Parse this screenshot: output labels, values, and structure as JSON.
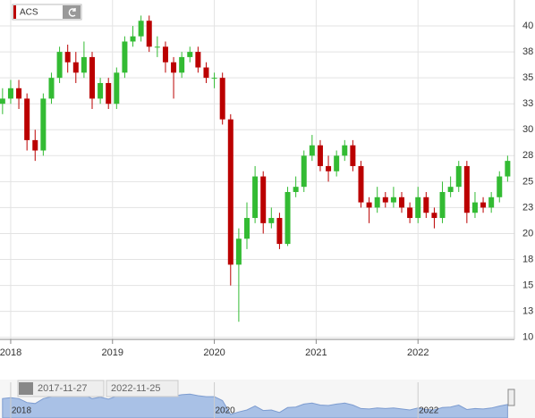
{
  "chart_data": {
    "type": "candlestick",
    "title": "ACS",
    "x": [
      2017.92,
      2018.0,
      2018.08,
      2018.16,
      2018.24,
      2018.32,
      2018.4,
      2018.48,
      2018.56,
      2018.64,
      2018.72,
      2018.8,
      2018.88,
      2018.96,
      2019.04,
      2019.12,
      2019.2,
      2019.28,
      2019.36,
      2019.44,
      2019.52,
      2019.6,
      2019.68,
      2019.76,
      2019.84,
      2019.92,
      2020.0,
      2020.08,
      2020.16,
      2020.24,
      2020.32,
      2020.4,
      2020.48,
      2020.56,
      2020.64,
      2020.72,
      2020.8,
      2020.88,
      2020.96,
      2021.04,
      2021.12,
      2021.2,
      2021.28,
      2021.36,
      2021.44,
      2021.52,
      2021.6,
      2021.68,
      2021.76,
      2021.84,
      2021.92,
      2022.0,
      2022.08,
      2022.16,
      2022.24,
      2022.32,
      2022.4,
      2022.48,
      2022.56,
      2022.64,
      2022.72,
      2022.8,
      2022.88
    ],
    "open": [
      32.5,
      33,
      34,
      33,
      29,
      28,
      33,
      35,
      37.5,
      36.5,
      35.5,
      37,
      33,
      34.5,
      32.5,
      35.5,
      38.5,
      39,
      40.5,
      38,
      38,
      36.5,
      35.5,
      37,
      37.5,
      36,
      35,
      35,
      31,
      17,
      19.5,
      21.5,
      25.5,
      21,
      21.5,
      19,
      24,
      24.5,
      27.5,
      28.5,
      26.5,
      26,
      27.5,
      28.5,
      26.5,
      23,
      22.5,
      23.5,
      23,
      23.5,
      22.5,
      21.5,
      23.5,
      22,
      21.5,
      24,
      24.5,
      26.5,
      22,
      23,
      22.5,
      23.5,
      25.5
    ],
    "high": [
      34,
      34.8,
      34.8,
      33.5,
      30,
      33.5,
      35.5,
      38,
      38.2,
      37.5,
      38.5,
      37.5,
      35,
      35,
      36,
      39,
      40,
      41,
      41,
      39,
      38.5,
      37,
      37.5,
      38,
      38,
      36.5,
      35.5,
      35.5,
      31.5,
      20.5,
      23,
      26.5,
      26,
      22.5,
      22,
      24.5,
      25.5,
      28,
      29.5,
      29,
      27.5,
      28,
      29,
      29,
      27,
      23.5,
      24.5,
      24,
      24.5,
      24,
      23,
      24.5,
      24,
      22.5,
      25,
      25.5,
      27,
      27,
      24,
      23.5,
      24,
      26,
      27.5
    ],
    "low": [
      31.5,
      32.5,
      32,
      28,
      27,
      27.5,
      32.5,
      34.5,
      35.5,
      34.5,
      35,
      32,
      32.5,
      32,
      32,
      35,
      38,
      38.5,
      37.5,
      37,
      35.5,
      33,
      35,
      36.5,
      35.5,
      34.5,
      34,
      30.5,
      15,
      11.5,
      18.5,
      21,
      20,
      20.5,
      18.5,
      18.8,
      23.5,
      24,
      27,
      26,
      25,
      25.5,
      27,
      26,
      22.5,
      21,
      22,
      22.5,
      22.5,
      22,
      21,
      21,
      21.5,
      20.5,
      21,
      23.5,
      24,
      21,
      21.5,
      22,
      22,
      23,
      25
    ],
    "close": [
      33,
      34,
      33,
      29,
      28,
      33,
      35,
      37.5,
      36.5,
      35.5,
      37,
      33,
      34.5,
      32.5,
      35.5,
      38.5,
      39,
      40.5,
      38,
      38,
      36.5,
      35.5,
      37,
      37.5,
      36,
      35,
      35,
      31,
      17,
      19.5,
      21.5,
      25.5,
      21,
      21.5,
      19,
      24,
      24.5,
      27.5,
      28.5,
      26.5,
      26,
      27.5,
      28.5,
      26.5,
      23,
      22.5,
      23.5,
      23,
      23.5,
      22.5,
      21.5,
      23.5,
      22,
      21.5,
      24,
      24.5,
      26.5,
      22,
      23,
      22.5,
      23.5,
      25.5,
      27
    ],
    "up_color": "#33bb33",
    "down_color": "#bb0000",
    "xlim": [
      2017.895,
      2022.947
    ],
    "xticks": [
      2018,
      2019,
      2020,
      2021,
      2022
    ],
    "ylim": [
      9.8,
      42.5
    ],
    "yticks": [
      10,
      {
        "value": 12.5,
        "label": "13"
      },
      15,
      {
        "value": 17.5,
        "label": "18"
      },
      20,
      {
        "value": 22.5,
        "label": "23"
      },
      25,
      {
        "value": 27.5,
        "label": "28"
      },
      30,
      {
        "value": 32.5,
        "label": "33"
      },
      35,
      {
        "value": 37.5,
        "label": "38"
      },
      40
    ],
    "grid": true,
    "navigator": {
      "range_labels": [
        "2017-11-27",
        "2022-11-25"
      ],
      "xticks": [
        2018,
        2020,
        2022
      ],
      "color": "#a9c1e6"
    }
  }
}
